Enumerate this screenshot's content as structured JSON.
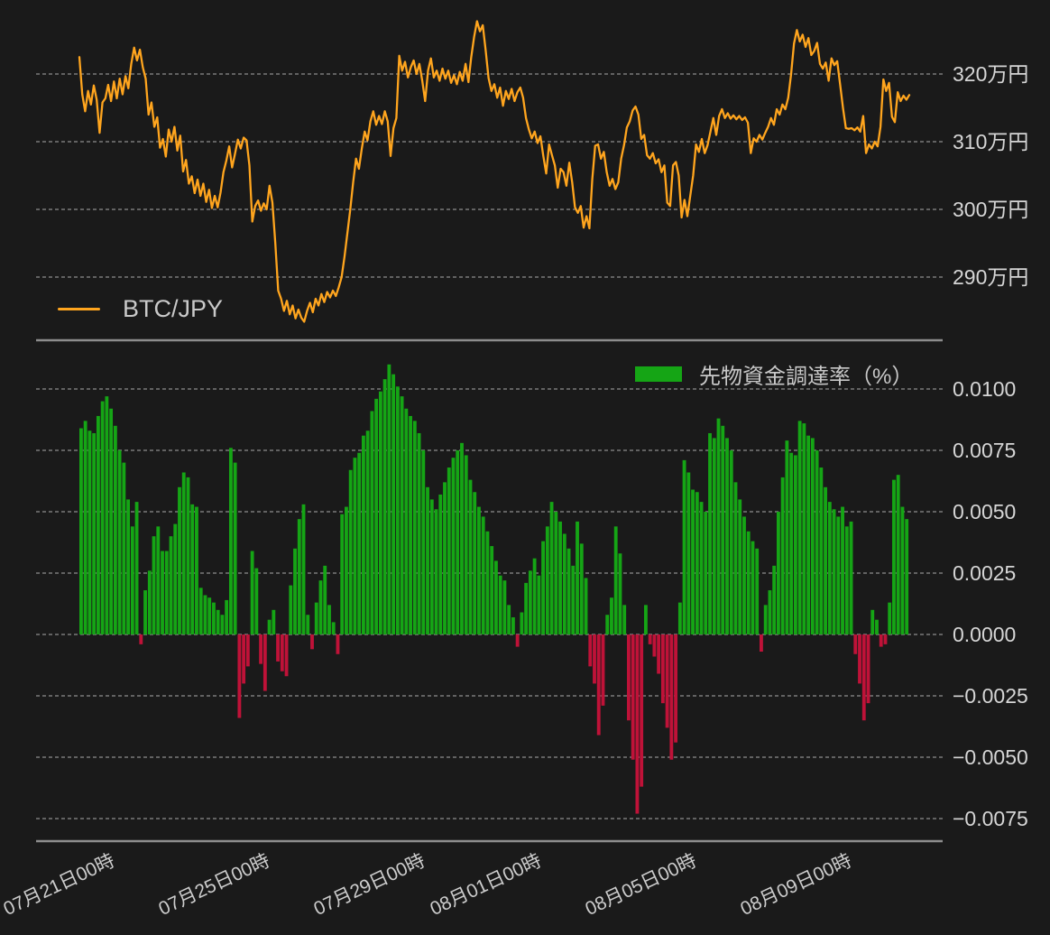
{
  "colors": {
    "background": "#1a1a1a",
    "grid": "#cfcfcf",
    "axis_spine": "#8d8d8d",
    "text": "#d6d6d6",
    "line": "#ffa51e",
    "bar_positive": "#15a515",
    "bar_negative": "#bf1238"
  },
  "x_axis": {
    "tick_labels": [
      "07月21日00時",
      "07月25日00時",
      "07月29日00時",
      "08月01日00時",
      "08月05日00時",
      "08月09日00時"
    ],
    "tick_positions": [
      0.029,
      0.216,
      0.403,
      0.543,
      0.73,
      0.917
    ]
  },
  "chart_data": [
    {
      "type": "line",
      "name": "BTC/JPY",
      "legend_label": "BTC/JPY",
      "unit": "万円",
      "color": "#ffa51e",
      "ylim": [
        282.5,
        328.5
      ],
      "grid": true,
      "legend_position": "lower-left",
      "yticks": [
        {
          "value": 320,
          "label": "320万円"
        },
        {
          "value": 310,
          "label": "310万円"
        },
        {
          "value": 300,
          "label": "300万円"
        },
        {
          "value": 290,
          "label": "290万円"
        }
      ],
      "values": [
        322.5,
        317.0,
        314.5,
        317.5,
        315.5,
        318.3,
        316.2,
        311.3,
        315.8,
        316.4,
        318.4,
        316.0,
        318.9,
        316.4,
        319.3,
        317.0,
        319.7,
        317.9,
        321.5,
        323.9,
        322.0,
        323.6,
        321.0,
        319.3,
        314.0,
        315.8,
        312.2,
        313.6,
        309.1,
        310.4,
        307.8,
        311.8,
        310.0,
        312.2,
        308.7,
        310.9,
        305.6,
        307.3,
        303.8,
        304.9,
        302.4,
        304.4,
        302.0,
        303.8,
        301.1,
        302.9,
        300.2,
        302.0,
        300.3,
        302.5,
        305.5,
        307.2,
        309.3,
        306.2,
        308.2,
        310.3,
        309.0,
        310.6,
        310.2,
        306.5,
        298.2,
        300.5,
        301.3,
        299.8,
        300.9,
        300.0,
        303.5,
        301.0,
        295.0,
        288.0,
        286.8,
        285.0,
        286.5,
        284.5,
        285.8,
        283.9,
        285.2,
        284.0,
        283.4,
        285.0,
        286.2,
        284.8,
        286.8,
        285.8,
        287.5,
        286.3,
        287.8,
        287.0,
        288.0,
        287.2,
        288.5,
        290.0,
        293.0,
        296.5,
        300.0,
        304.0,
        307.5,
        306.0,
        309.0,
        311.5,
        310.2,
        313.0,
        314.5,
        312.5,
        313.8,
        312.6,
        314.5,
        313.0,
        307.9,
        312.0,
        313.5,
        322.7,
        320.5,
        321.8,
        319.5,
        321.0,
        322.0,
        320.0,
        321.5,
        319.0,
        316.0,
        320.5,
        322.3,
        319.5,
        320.5,
        319.0,
        320.8,
        319.3,
        320.5,
        318.7,
        319.8,
        318.5,
        320.3,
        319.0,
        321.5,
        318.8,
        322.5,
        325.5,
        327.8,
        326.3,
        327.2,
        323.5,
        319.4,
        317.5,
        318.5,
        316.5,
        318.0,
        315.3,
        317.5,
        316.3,
        317.8,
        316.0,
        317.3,
        318.0,
        316.5,
        313.5,
        311.8,
        310.5,
        311.5,
        309.8,
        310.8,
        307.9,
        305.3,
        309.6,
        308.0,
        306.5,
        303.2,
        306.0,
        305.5,
        303.5,
        306.9,
        304.0,
        300.3,
        299.5,
        300.5,
        297.3,
        299.0,
        297.2,
        304.5,
        309.4,
        309.6,
        307.5,
        308.5,
        305.5,
        303.5,
        304.5,
        303.0,
        304.0,
        307.5,
        309.5,
        312.1,
        313.0,
        314.6,
        315.2,
        314.0,
        310.4,
        311.0,
        308.0,
        307.5,
        308.3,
        306.8,
        307.4,
        305.5,
        306.5,
        301.0,
        300.5,
        306.5,
        307.0,
        305.0,
        298.8,
        301.4,
        299.0,
        302.0,
        305.0,
        309.6,
        308.5,
        310.4,
        308.3,
        309.5,
        311.5,
        313.5,
        311.0,
        313.8,
        314.8,
        313.5,
        314.2,
        313.4,
        313.9,
        313.3,
        313.8,
        313.2,
        313.6,
        312.8,
        308.3,
        310.5,
        310.0,
        311.0,
        310.3,
        311.3,
        312.2,
        313.5,
        312.5,
        314.8,
        314.0,
        315.5,
        314.8,
        316.5,
        320.0,
        324.5,
        326.5,
        324.8,
        325.8,
        324.0,
        325.3,
        322.8,
        323.4,
        324.6,
        321.5,
        320.8,
        321.7,
        319.0,
        322.3,
        321.3,
        321.9,
        318.5,
        315.0,
        312.0,
        311.9,
        312.0,
        311.7,
        312.1,
        311.5,
        313.8,
        308.3,
        309.6,
        309.0,
        310.0,
        309.3,
        312.2,
        319.2,
        317.5,
        318.7,
        313.7,
        312.9,
        317.3,
        316.0,
        316.8,
        316.2,
        316.9
      ]
    },
    {
      "type": "bar",
      "name": "先物資金調達率（%）",
      "legend_label": "先物資金調達率（%）",
      "positive_color": "#15a515",
      "negative_color": "#bf1238",
      "ylim": [
        -0.0085,
        0.0113
      ],
      "grid": true,
      "legend_position": "upper-right",
      "yticks": [
        {
          "value": 0.01,
          "label": "0.0100"
        },
        {
          "value": 0.0075,
          "label": "0.0075"
        },
        {
          "value": 0.005,
          "label": "0.0050"
        },
        {
          "value": 0.0025,
          "label": "0.0025"
        },
        {
          "value": 0.0,
          "label": "0.0000"
        },
        {
          "value": -0.0025,
          "label": "−0.0025"
        },
        {
          "value": -0.005,
          "label": "−0.0050"
        },
        {
          "value": -0.0075,
          "label": "−0.0075"
        }
      ],
      "values": [
        0.0084,
        0.0087,
        0.0083,
        0.0082,
        0.0089,
        0.0095,
        0.0097,
        0.0092,
        0.0085,
        0.0075,
        0.007,
        0.0055,
        0.0044,
        0.0054,
        -0.0004,
        0.0018,
        0.0026,
        0.004,
        0.0044,
        0.0034,
        0.0034,
        0.004,
        0.0045,
        0.006,
        0.0066,
        0.0064,
        0.0053,
        0.0052,
        0.0019,
        0.0016,
        0.0015,
        0.0013,
        0.001,
        0.0008,
        0.0014,
        0.0076,
        0.007,
        -0.0034,
        -0.002,
        -0.0013,
        0.0034,
        0.0027,
        -0.0012,
        -0.0023,
        0.0006,
        0.001,
        -0.0011,
        -0.0015,
        -0.0017,
        0.002,
        0.0035,
        0.0047,
        0.0053,
        0.0008,
        -0.0006,
        0.0013,
        0.0022,
        0.0028,
        0.0012,
        0.0005,
        -0.0008,
        0.0049,
        0.0052,
        0.0067,
        0.0072,
        0.0074,
        0.0081,
        0.0083,
        0.0091,
        0.0096,
        0.0099,
        0.0104,
        0.011,
        0.0106,
        0.0101,
        0.0097,
        0.0092,
        0.0089,
        0.0087,
        0.0082,
        0.0075,
        0.006,
        0.0055,
        0.0051,
        0.0057,
        0.0062,
        0.0068,
        0.0072,
        0.0075,
        0.0078,
        0.0073,
        0.0063,
        0.0058,
        0.0052,
        0.0048,
        0.0042,
        0.0036,
        0.003,
        0.0024,
        0.0022,
        0.0012,
        0.0007,
        -0.0005,
        0.0009,
        0.0021,
        0.0026,
        0.0031,
        0.0024,
        0.0038,
        0.0044,
        0.0054,
        0.005,
        0.0046,
        0.0041,
        0.0035,
        0.0028,
        0.0046,
        0.0037,
        0.0023,
        -0.0013,
        -0.002,
        -0.0041,
        -0.0029,
        0.0008,
        0.0015,
        0.0044,
        0.0033,
        0.0012,
        -0.0035,
        -0.0051,
        -0.0073,
        -0.0062,
        0.0012,
        -0.0004,
        -0.0009,
        -0.0016,
        -0.0028,
        -0.0038,
        -0.0051,
        -0.0044,
        0.0013,
        0.0071,
        0.0066,
        0.0059,
        0.0058,
        0.0054,
        0.005,
        0.0082,
        0.008,
        0.0088,
        0.0085,
        0.008,
        0.0075,
        0.0062,
        0.0055,
        0.0048,
        0.0042,
        0.0038,
        0.0035,
        -0.0007,
        0.0012,
        0.0018,
        0.0028,
        0.005,
        0.0064,
        0.0079,
        0.0074,
        0.0073,
        0.0087,
        0.0086,
        0.0081,
        0.008,
        0.0075,
        0.0068,
        0.006,
        0.0054,
        0.0051,
        0.0048,
        0.0052,
        0.0044,
        0.0046,
        -0.0008,
        -0.002,
        -0.0035,
        -0.0028,
        0.001,
        0.0006,
        -0.0005,
        -0.0004,
        0.0013,
        0.0063,
        0.0065,
        0.0052,
        0.0047
      ]
    }
  ]
}
